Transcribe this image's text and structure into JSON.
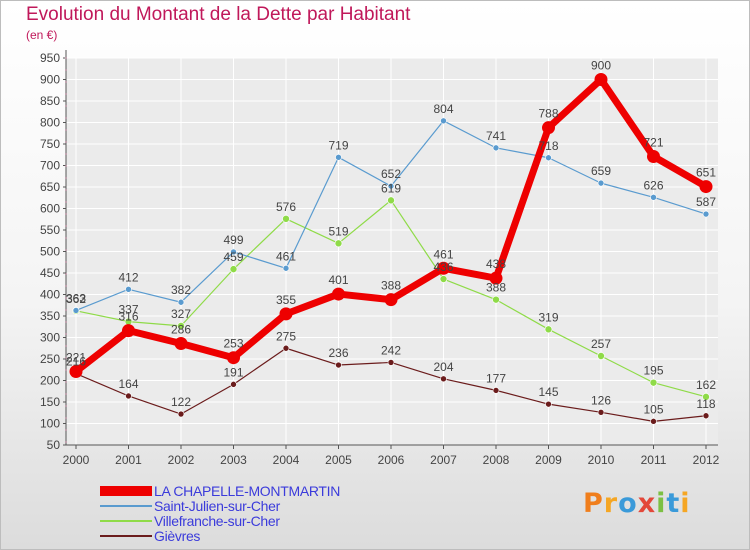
{
  "colors": {
    "title": "#c0185a",
    "axis": "#555555",
    "grid": "#ffffff",
    "label": "#444444"
  },
  "brand": {
    "letters": [
      "P",
      "r",
      "o",
      "x",
      "i",
      "t",
      "i"
    ],
    "colors": [
      "#f07e1c",
      "#f5a623",
      "#3a9ad9",
      "#e3483a",
      "#7cc043",
      "#3a9ad9",
      "#f5a623"
    ]
  },
  "chart_data": {
    "type": "line",
    "title": "Evolution du Montant de la Dette par Habitant",
    "subtitle": "(en €)",
    "xlabel": "",
    "ylabel": "",
    "x": [
      "2000",
      "2001",
      "2002",
      "2003",
      "2004",
      "2005",
      "2006",
      "2007",
      "2008",
      "2009",
      "2010",
      "2011",
      "2012"
    ],
    "ylim": [
      50,
      950
    ],
    "yticks": [
      "50",
      "100",
      "150",
      "200",
      "250",
      "300",
      "350",
      "400",
      "450",
      "500",
      "550",
      "600",
      "650",
      "700",
      "750",
      "800",
      "850",
      "900",
      "950"
    ],
    "grid": true,
    "legend_position": "bottom-left",
    "series": [
      {
        "name": "Gièvres",
        "color": "#6b1c1c",
        "line_width": 1.2,
        "marker_radius": 3,
        "values": [
          216,
          164,
          122,
          191,
          275,
          236,
          242,
          204,
          177,
          145,
          126,
          105,
          118
        ]
      },
      {
        "name": "Villefranche-sur-Cher",
        "color": "#8fdb48",
        "line_width": 1.2,
        "marker_radius": 3.5,
        "values": [
          362,
          337,
          327,
          459,
          576,
          519,
          619,
          436,
          388,
          319,
          257,
          195,
          162
        ]
      },
      {
        "name": "Saint-Julien-sur-Cher",
        "color": "#5a9bcf",
        "line_width": 1.2,
        "marker_radius": 3,
        "values": [
          363,
          412,
          382,
          499,
          461,
          719,
          652,
          804,
          741,
          718,
          659,
          626,
          587
        ]
      },
      {
        "name": "LA CHAPELLE-MONTMARTIN",
        "color": "#ee0000",
        "line_width": 7,
        "marker_radius": 6.5,
        "values": [
          221,
          316,
          286,
          253,
          355,
          401,
          388,
          461,
          438,
          788,
          900,
          721,
          651
        ]
      }
    ],
    "legend_order": [
      "LA CHAPELLE-MONTMARTIN",
      "Saint-Julien-sur-Cher",
      "Villefranche-sur-Cher",
      "Gièvres"
    ]
  }
}
